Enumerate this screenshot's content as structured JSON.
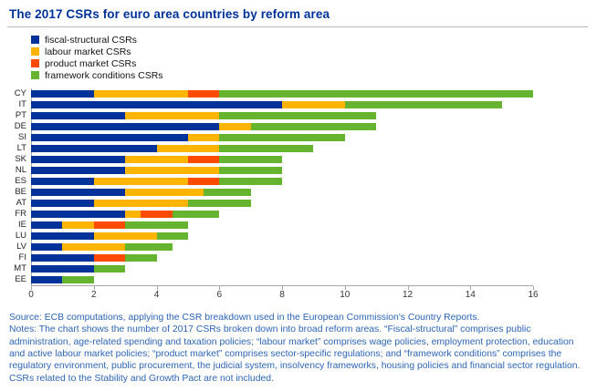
{
  "title": "The 2017 CSRs for euro area countries by reform area",
  "colors": {
    "title_text": "#003299",
    "notes_text": "#2c64b5",
    "axis_line": "#a6a6a6",
    "fiscal_structural": "#003299",
    "labour_market": "#ffb400",
    "product_market": "#ff4b00",
    "framework_conditions": "#65b32e"
  },
  "chart_data": {
    "type": "bar",
    "orientation": "horizontal",
    "stacked": true,
    "title": "The 2017 CSRs for euro area countries by reform area",
    "categories": [
      "CY",
      "IT",
      "PT",
      "DE",
      "SI",
      "LT",
      "SK",
      "NL",
      "ES",
      "BE",
      "AT",
      "FR",
      "IE",
      "LU",
      "LV",
      "FI",
      "MT",
      "EE"
    ],
    "series": [
      {
        "name": "fiscal-structural CSRs",
        "color": "#003299",
        "values": [
          2,
          8,
          3,
          6,
          5,
          4,
          3,
          3,
          2,
          3,
          2,
          3,
          1,
          2,
          1,
          2,
          2,
          1
        ]
      },
      {
        "name": "labour market CSRs",
        "color": "#ffb400",
        "values": [
          3,
          2,
          3,
          1,
          1,
          2,
          2,
          3,
          3,
          2.5,
          3,
          0.5,
          1,
          2,
          2,
          0,
          0,
          0
        ]
      },
      {
        "name": "product market CSRs",
        "color": "#ff4b00",
        "values": [
          1,
          0,
          0,
          0,
          0,
          0,
          1,
          0,
          1,
          0,
          0,
          1,
          1,
          0,
          0,
          1,
          0,
          0
        ]
      },
      {
        "name": "framework conditions CSRs",
        "color": "#65b32e",
        "values": [
          10,
          5,
          5,
          4,
          4,
          3,
          2,
          2,
          2,
          1.5,
          2,
          1.5,
          2,
          1,
          1.5,
          1,
          1,
          1
        ]
      }
    ],
    "xlim": [
      0,
      16
    ],
    "xticks": [
      0,
      2,
      4,
      6,
      8,
      10,
      12,
      14,
      16
    ],
    "legend_position": "top-left",
    "grid": false
  },
  "source": "Source: ECB computations, applying the CSR breakdown used in the European Commission's Country Reports.",
  "notes": "Notes: The chart shows the number of 2017 CSRs broken down into broad reform areas. “Fiscal-structural” comprises public administration, age-related spending and taxation policies; “labour market” comprises wage policies, employment protection, education and active labour market policies; “product market” comprises sector-specific regulations; and “framework conditions” comprises the regulatory environment, public procurement, the judicial system, insolvency frameworks, housing policies and financial sector regulation. CSRs related to the Stability and Growth Pact are not included."
}
